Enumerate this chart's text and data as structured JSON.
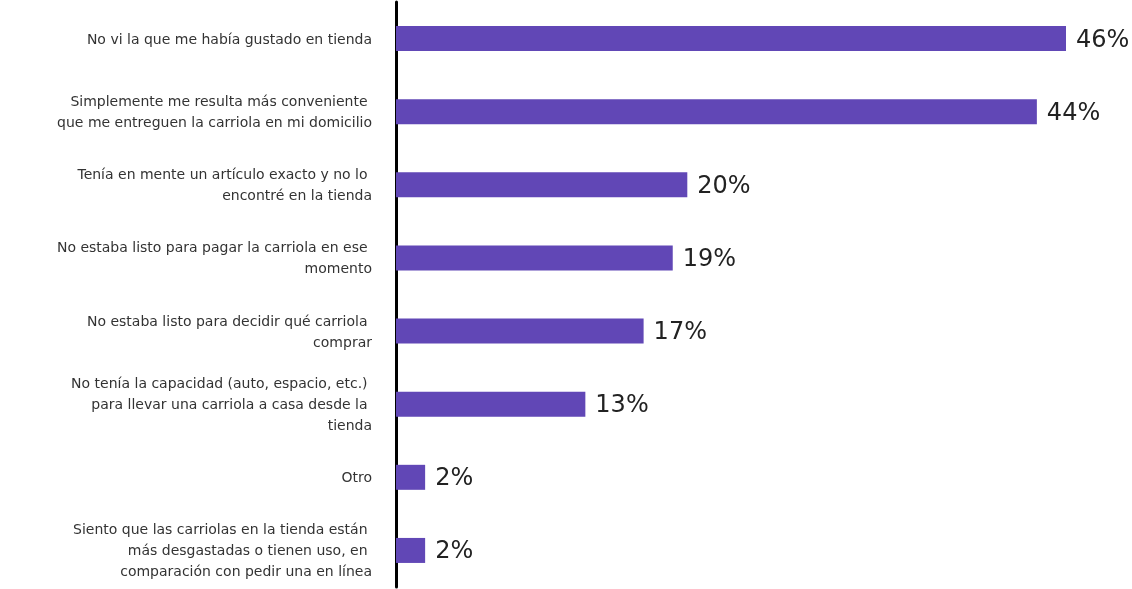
{
  "chart_data": {
    "type": "bar",
    "orientation": "horizontal",
    "categories": [
      "No vi la que me había gustado en tienda",
      "Simplemente me resulta más conveniente que me entreguen la carriola en mi domicilio",
      "Tenía en mente un artículo exacto y no lo encontré en la tienda",
      "No estaba listo para pagar la carriola en ese momento",
      "No estaba listo para decidir qué carriola comprar",
      "No tenía la capacidad (auto, espacio, etc.) para llevar una carriola a casa desde la tienda",
      "Otro",
      "Siento que las carriolas en la tienda están más desgastadas o tienen uso, en comparación con pedir una en línea"
    ],
    "values": [
      46,
      44,
      20,
      19,
      17,
      13,
      2,
      2
    ],
    "value_labels": [
      "46%",
      "44%",
      "20%",
      "19%",
      "17%",
      "13%",
      "2%",
      "2%"
    ],
    "color": "#6147b6"
  }
}
